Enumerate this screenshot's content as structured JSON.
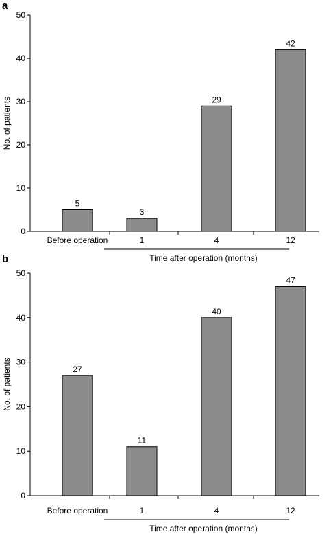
{
  "chart_data": [
    {
      "panel": "a",
      "type": "bar",
      "categories": [
        "Before operation",
        "1",
        "4",
        "12"
      ],
      "values": [
        5,
        3,
        29,
        42
      ],
      "title": "",
      "ylabel": "No. of patients",
      "xlabel": "Time after operation (months)",
      "ylim": [
        0,
        50
      ],
      "yticks": [
        0,
        10,
        20,
        30,
        40,
        50
      ],
      "bar_color": "#8c8c8c",
      "grid": false
    },
    {
      "panel": "b",
      "type": "bar",
      "categories": [
        "Before operation",
        "1",
        "4",
        "12"
      ],
      "values": [
        27,
        11,
        40,
        47
      ],
      "title": "",
      "ylabel": "No. of patients",
      "xlabel": "Time after operation (months)",
      "ylim": [
        0,
        50
      ],
      "yticks": [
        0,
        10,
        20,
        30,
        40,
        50
      ],
      "bar_color": "#8c8c8c",
      "grid": false
    }
  ]
}
